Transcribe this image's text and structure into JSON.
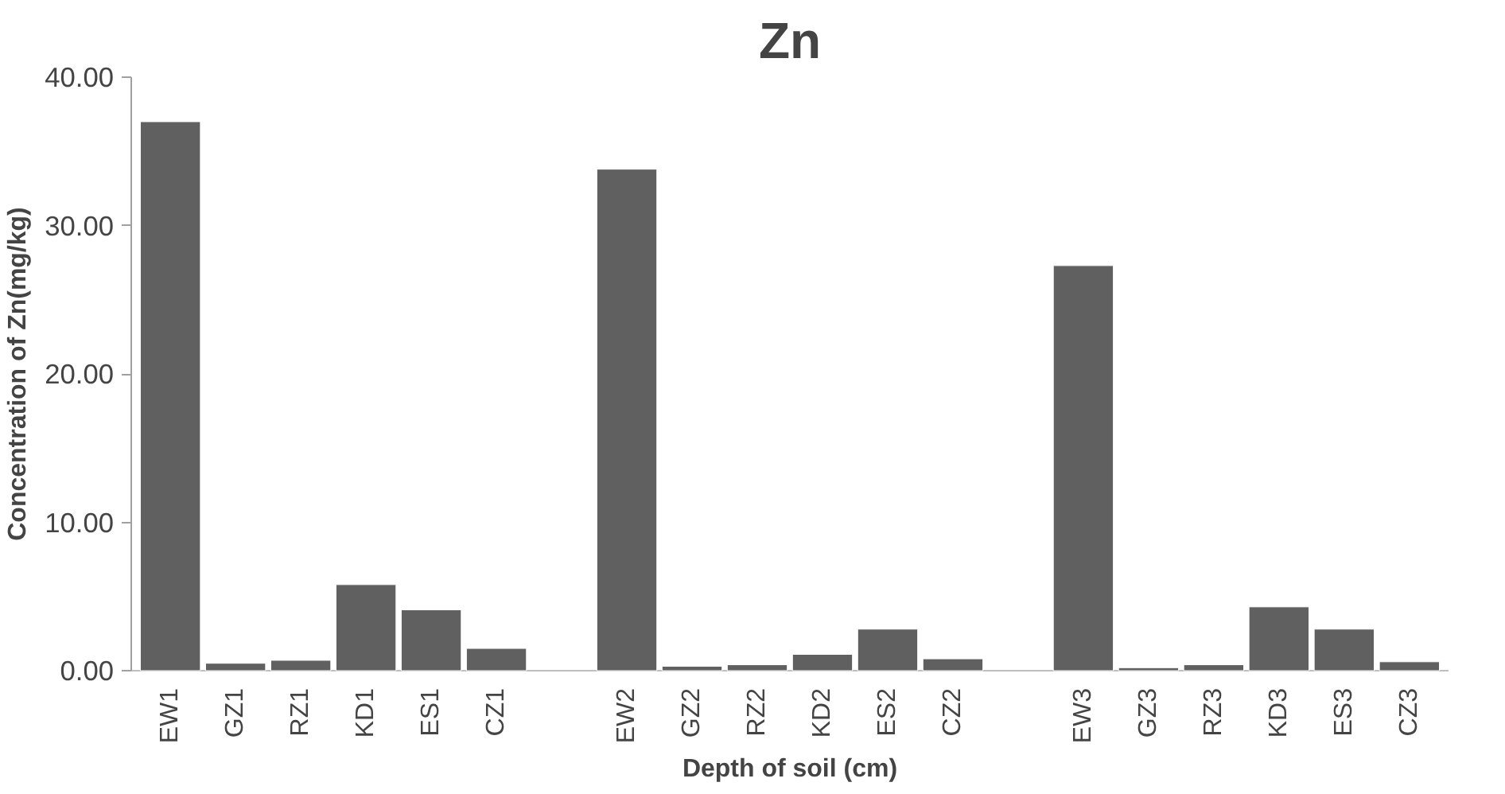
{
  "chart_data": {
    "type": "bar",
    "title": "Zn",
    "xlabel": "Depth of soil (cm)",
    "ylabel": "Concentration of Zn(mg/kg)",
    "categories": [
      "EW1",
      "GZ1",
      "RZ1",
      "KD1",
      "ES1",
      "CZ1",
      null,
      "EW2",
      "GZ2",
      "RZ2",
      "KD2",
      "ES2",
      "CZ2",
      null,
      "EW3",
      "GZ3",
      "RZ3",
      "KD3",
      "ES3",
      "CZ3"
    ],
    "values": [
      37.0,
      0.5,
      0.7,
      5.8,
      4.1,
      1.5,
      null,
      33.8,
      0.3,
      0.4,
      1.1,
      2.8,
      0.8,
      null,
      27.3,
      0.2,
      0.4,
      4.3,
      2.8,
      0.6
    ],
    "color": "#606060",
    "ylim": [
      0,
      40
    ],
    "yticks": [
      {
        "value": 0,
        "label": "0.00"
      },
      {
        "value": 10,
        "label": "10.00"
      },
      {
        "value": 20,
        "label": "20.00"
      },
      {
        "value": 30,
        "label": "30.00"
      },
      {
        "value": 40,
        "label": "40.00"
      }
    ],
    "grid": false
  }
}
